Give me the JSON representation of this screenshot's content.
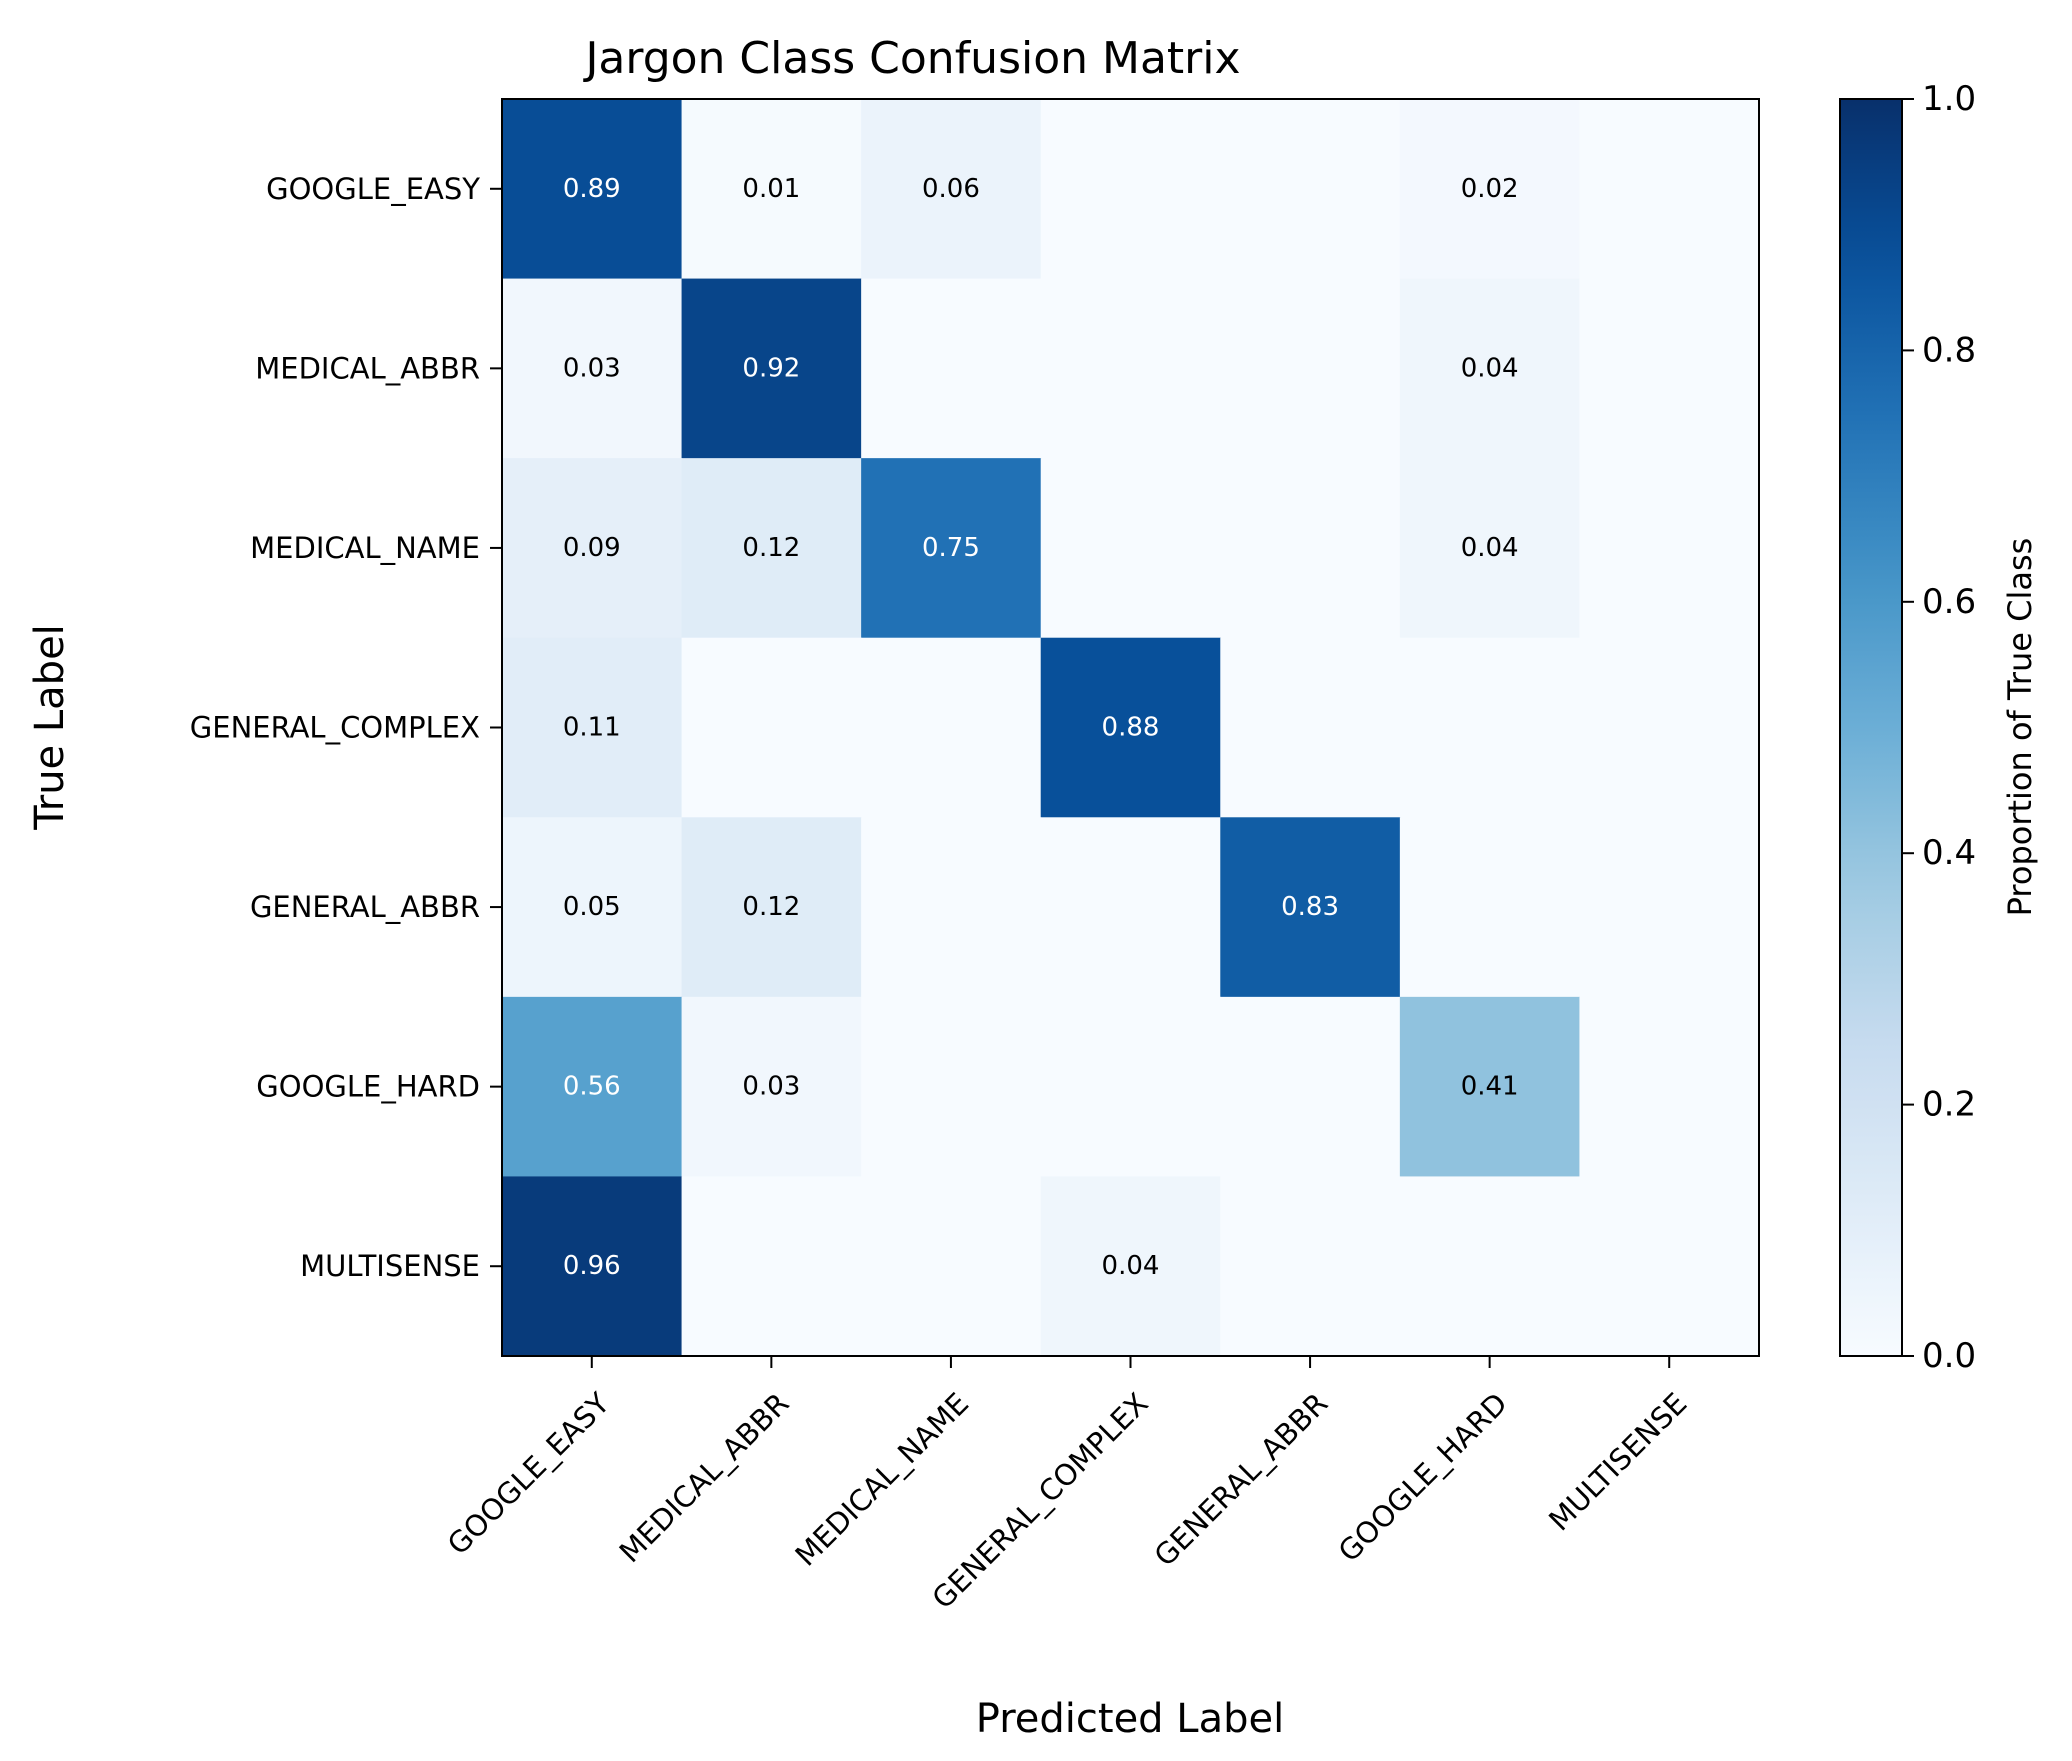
{
  "chart_data": {
    "type": "heatmap",
    "title": "Jargon Class Confusion Matrix",
    "xlabel": "Predicted Label",
    "ylabel": "True Label",
    "colorbar_label": "Proportion of True Class",
    "colormap": "Blues",
    "color_range": [
      0.0,
      1.0
    ],
    "colorbar_ticks": [
      "0.0",
      "0.2",
      "0.4",
      "0.6",
      "0.8",
      "1.0"
    ],
    "x_categories": [
      "GOOGLE_EASY",
      "MEDICAL_ABBR",
      "MEDICAL_NAME",
      "GENERAL_COMPLEX",
      "GENERAL_ABBR",
      "GOOGLE_HARD",
      "MULTISENSE"
    ],
    "y_categories": [
      "GOOGLE_EASY",
      "MEDICAL_ABBR",
      "MEDICAL_NAME",
      "GENERAL_COMPLEX",
      "GENERAL_ABBR",
      "GOOGLE_HARD",
      "MULTISENSE"
    ],
    "values": [
      [
        0.89,
        0.01,
        0.06,
        0.0,
        0.0,
        0.02,
        0.0
      ],
      [
        0.03,
        0.92,
        0.0,
        0.0,
        0.0,
        0.04,
        0.0
      ],
      [
        0.09,
        0.12,
        0.75,
        0.0,
        0.0,
        0.04,
        0.0
      ],
      [
        0.11,
        0.0,
        0.0,
        0.88,
        0.0,
        0.0,
        0.0
      ],
      [
        0.05,
        0.12,
        0.0,
        0.0,
        0.83,
        0.0,
        0.0
      ],
      [
        0.56,
        0.03,
        0.0,
        0.0,
        0.0,
        0.41,
        0.0
      ],
      [
        0.96,
        0.0,
        0.0,
        0.04,
        0.0,
        0.0,
        0.0
      ]
    ],
    "annotation_format": "0.00",
    "annotate_zero_cells": false
  }
}
